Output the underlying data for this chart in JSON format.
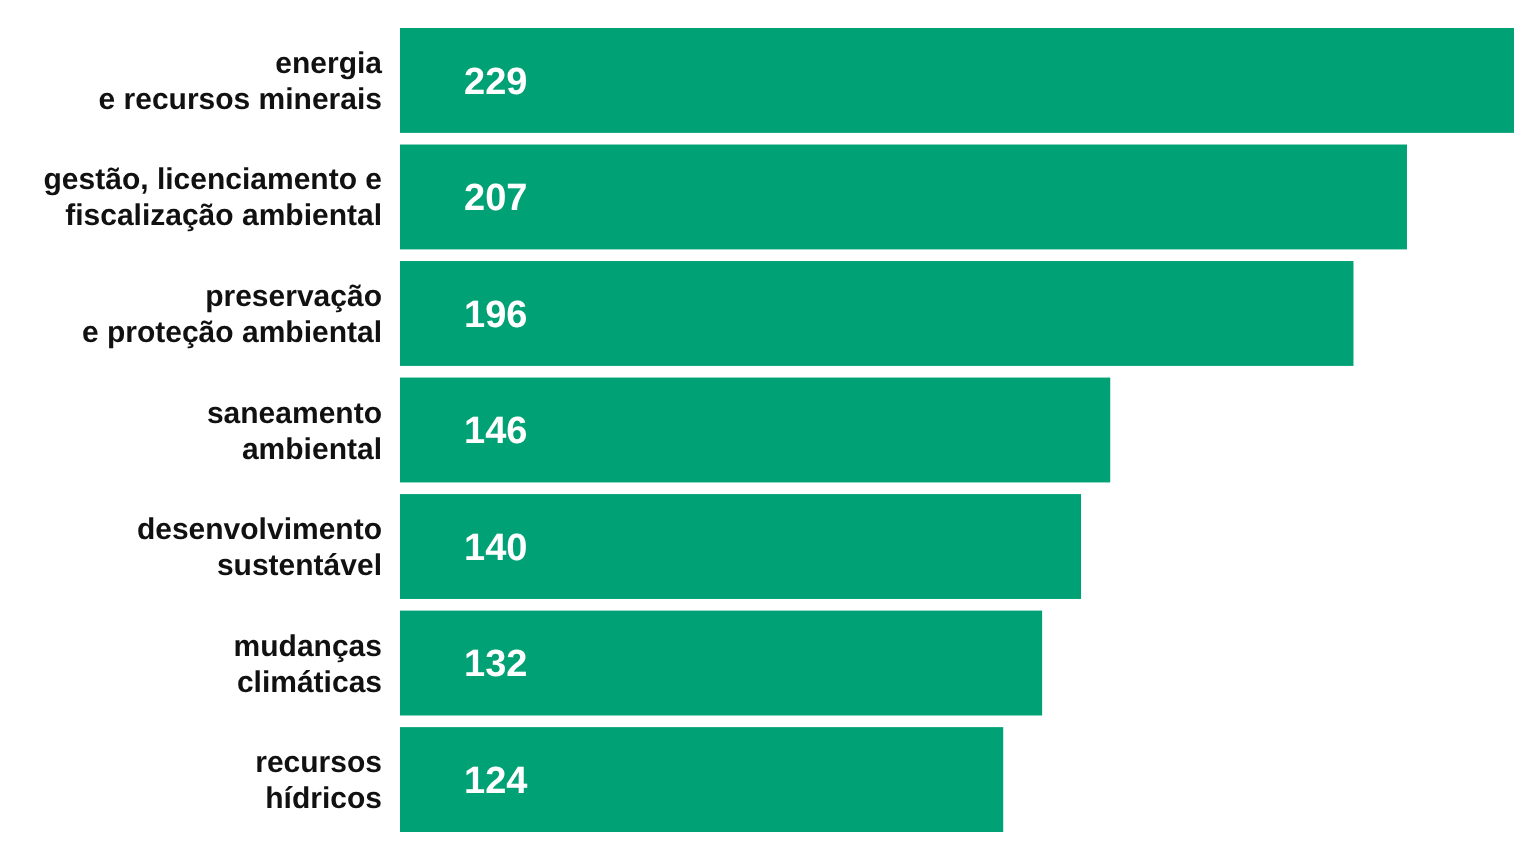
{
  "chart_data": {
    "type": "bar",
    "orientation": "horizontal",
    "categories": [
      "energia\ne recursos minerais",
      "gestão, licenciamento e\nfiscalização ambiental",
      "preservação\ne proteção ambiental",
      "saneamento\nambiental",
      "desenvolvimento\nsustentável",
      "mudanças\nclimáticas",
      "recursos\nhídricos"
    ],
    "values": [
      229,
      207,
      196,
      146,
      140,
      132,
      124
    ],
    "color": "#00a174",
    "data_labels": true
  }
}
